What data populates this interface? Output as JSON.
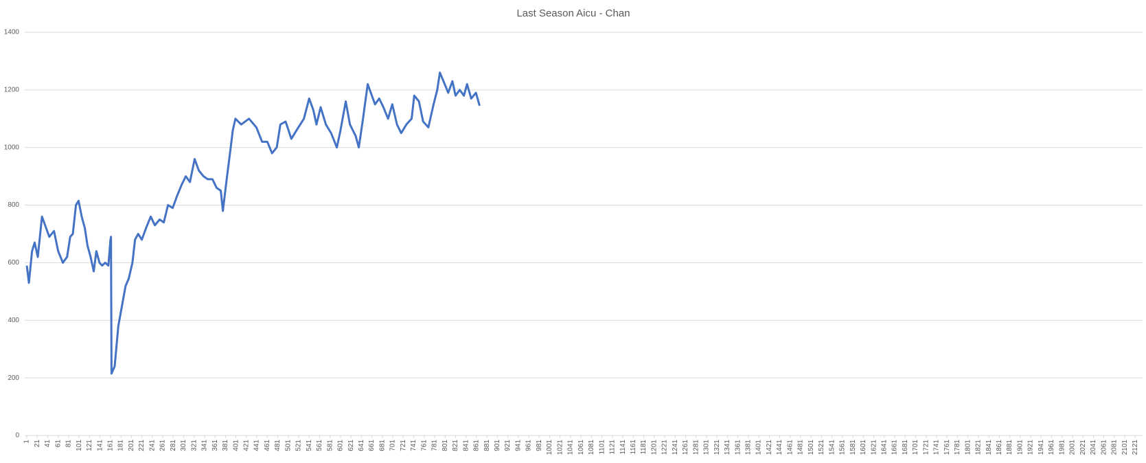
{
  "chart_data": {
    "type": "line",
    "title": "Last Season Aicu - Chan",
    "x": [
      1,
      5,
      11,
      16,
      22,
      30,
      36,
      44,
      53,
      61,
      70,
      78,
      84,
      89,
      95,
      100,
      106,
      112,
      117,
      123,
      129,
      134,
      140,
      145,
      151,
      157,
      161,
      162,
      163,
      169,
      176,
      183,
      190,
      196,
      203,
      208,
      214,
      221,
      229,
      238,
      246,
      255,
      263,
      271,
      280,
      288,
      297,
      305,
      313,
      322,
      330,
      339,
      347,
      356,
      364,
      372,
      376,
      384,
      391,
      395,
      400,
      411,
      426,
      440,
      451,
      461,
      470,
      479,
      486,
      496,
      507,
      517,
      524,
      531,
      541,
      549,
      555,
      563,
      573,
      583,
      594,
      601,
      611,
      619,
      630,
      636,
      644,
      653,
      661,
      667,
      675,
      683,
      692,
      700,
      709,
      717,
      727,
      737,
      742,
      751,
      759,
      769,
      779,
      786,
      791,
      798,
      807,
      815,
      821,
      829,
      837,
      843,
      851,
      860,
      867
    ],
    "values": [
      590,
      530,
      640,
      670,
      620,
      760,
      730,
      690,
      710,
      640,
      600,
      620,
      690,
      700,
      800,
      815,
      760,
      720,
      660,
      620,
      570,
      640,
      600,
      590,
      600,
      590,
      680,
      690,
      215,
      240,
      380,
      450,
      520,
      545,
      600,
      680,
      700,
      680,
      720,
      760,
      730,
      750,
      740,
      800,
      790,
      830,
      870,
      900,
      880,
      960,
      920,
      900,
      890,
      890,
      860,
      850,
      780,
      900,
      1000,
      1060,
      1100,
      1080,
      1100,
      1070,
      1020,
      1020,
      980,
      1000,
      1080,
      1090,
      1030,
      1060,
      1080,
      1100,
      1170,
      1130,
      1080,
      1140,
      1080,
      1050,
      1000,
      1060,
      1160,
      1080,
      1040,
      1000,
      1100,
      1220,
      1180,
      1150,
      1170,
      1140,
      1100,
      1150,
      1080,
      1050,
      1080,
      1100,
      1180,
      1160,
      1090,
      1070,
      1150,
      1200,
      1260,
      1230,
      1190,
      1230,
      1180,
      1200,
      1180,
      1220,
      1170,
      1190,
      1145
    ],
    "color": "#4472c4",
    "xlim": [
      -3,
      2135
    ],
    "xticks": [
      1,
      21,
      41,
      61,
      81,
      101,
      121,
      141,
      161,
      181,
      201,
      221,
      241,
      261,
      281,
      301,
      321,
      341,
      361,
      381,
      401,
      421,
      441,
      461,
      481,
      501,
      521,
      541,
      561,
      581,
      601,
      621,
      641,
      661,
      681,
      701,
      721,
      741,
      761,
      781,
      801,
      821,
      841,
      861,
      881,
      901,
      921,
      941,
      961,
      981,
      1001,
      1021,
      1041,
      1061,
      1081,
      1101,
      1121,
      1141,
      1161,
      1181,
      1201,
      1221,
      1241,
      1261,
      1281,
      1301,
      1321,
      1341,
      1361,
      1381,
      1401,
      1421,
      1441,
      1461,
      1481,
      1501,
      1521,
      1541,
      1561,
      1581,
      1601,
      1621,
      1641,
      1661,
      1681,
      1701,
      1721,
      1741,
      1761,
      1781,
      1801,
      1821,
      1841,
      1861,
      1881,
      1901,
      1921,
      1941,
      1961,
      1981,
      2001,
      2021,
      2041,
      2061,
      2081,
      2101,
      2121
    ],
    "ylim": [
      0,
      1400
    ],
    "yticks": [
      0,
      200,
      400,
      600,
      800,
      1000,
      1200,
      1400
    ],
    "grid": true
  }
}
